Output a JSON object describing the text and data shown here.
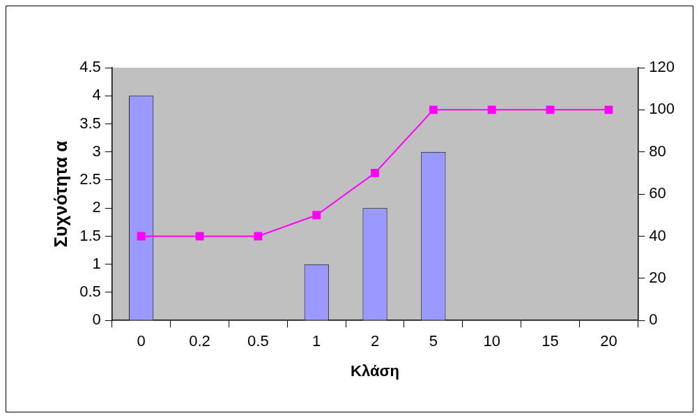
{
  "chart_data": {
    "type": "bar",
    "xlabel": "Κλάση",
    "ylabel": "Συχνότητα α",
    "categories": [
      "0",
      "0.2",
      "0.5",
      "1",
      "2",
      "5",
      "10",
      "15",
      "20"
    ],
    "series": [
      {
        "color": "#9999ff",
        "values": [
          4,
          0,
          0,
          1,
          2,
          3,
          0,
          0,
          0
        ]
      },
      {
        "type": "line",
        "axis": "y2",
        "color": "#ff00ff",
        "marker": "square",
        "values": [
          40,
          40,
          40,
          50,
          70,
          100,
          100,
          100,
          100
        ]
      }
    ],
    "ylim": [
      0,
      4.5
    ],
    "yticks": [
      0,
      0.5,
      1,
      1.5,
      2,
      2.5,
      3,
      3.5,
      4,
      4.5
    ],
    "y2lim": [
      0,
      120
    ],
    "y2ticks": [
      0,
      20,
      40,
      60,
      80,
      100,
      120
    ],
    "grid": false,
    "legend": false
  }
}
